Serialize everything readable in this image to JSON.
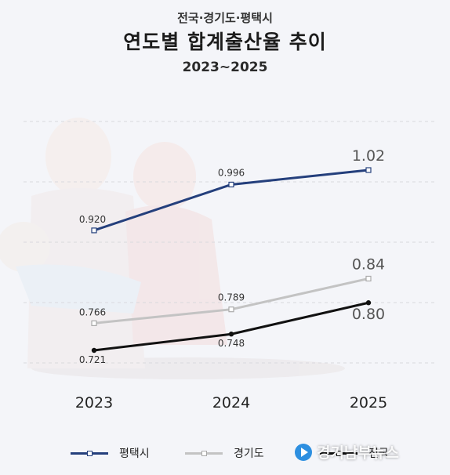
{
  "header": {
    "supertitle": "전국·경기도·평택시",
    "title": "연도별 합계출산율 추이",
    "subtitle": "2023~2025"
  },
  "colors": {
    "pyeongtaek": "#243f7c",
    "gyeonggi": "#c3c3c3",
    "national": "#111111",
    "background": "#f4f5f9"
  },
  "chart_data": {
    "type": "line",
    "categories": [
      "2023",
      "2024",
      "2025"
    ],
    "series": [
      {
        "name": "평택시",
        "values": [
          0.92,
          0.996,
          1.02
        ],
        "labels": [
          "0.920",
          "0.996",
          "1.02"
        ]
      },
      {
        "name": "경기도",
        "values": [
          0.766,
          0.789,
          0.84
        ],
        "labels": [
          "0.766",
          "0.789",
          "0.84"
        ]
      },
      {
        "name": "전국",
        "values": [
          0.721,
          0.748,
          0.8
        ],
        "labels": [
          "0.721",
          "0.748",
          "0.80"
        ]
      }
    ],
    "grid": true,
    "legend": "bottom"
  },
  "watermark": {
    "text": "경기남부뉴스",
    "icon": "play-logo-icon"
  }
}
